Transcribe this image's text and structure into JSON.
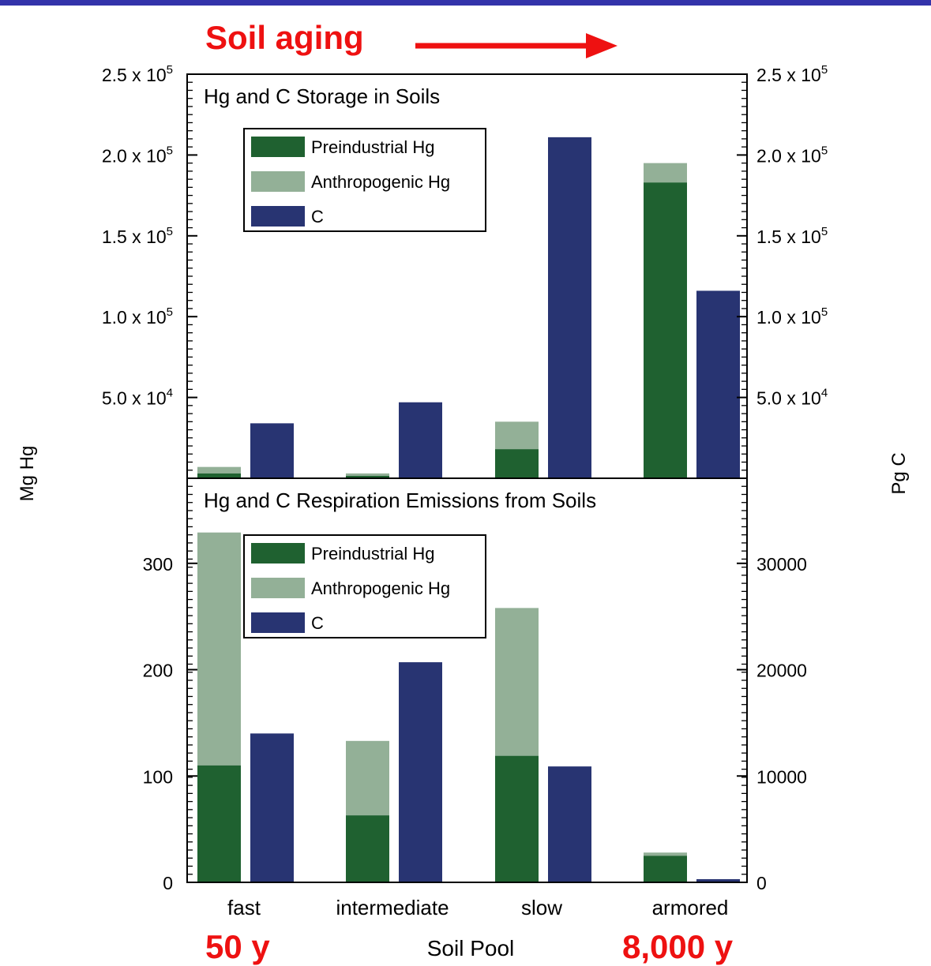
{
  "annotations": {
    "soil_aging": "Soil aging",
    "fast_age": "50 y",
    "armored_age": "8,000 y"
  },
  "axes": {
    "xlabel": "Soil Pool",
    "left_ylabel": "Mg Hg",
    "right_ylabel": "Pg C"
  },
  "colors": {
    "preindustrial": "#1f6130",
    "anthropogenic": "#93b097",
    "carbon": "#283472",
    "annotation": "#ee1111",
    "topbar": "#3333aa"
  },
  "chart_data": [
    {
      "type": "bar",
      "stacked_hg": true,
      "title": "Hg and C Storage in Soils",
      "categories": [
        "fast",
        "intermediate",
        "slow",
        "armored"
      ],
      "series": [
        {
          "name": "Preindustrial Hg",
          "axis": "left",
          "values": [
            3000,
            1500,
            18000,
            183000
          ]
        },
        {
          "name": "Anthropogenic Hg",
          "axis": "left",
          "values": [
            4000,
            1500,
            17000,
            12000
          ]
        },
        {
          "name": "C",
          "axis": "right",
          "values": [
            34000,
            47000,
            211000,
            116000
          ]
        }
      ],
      "left_ylim": [
        0,
        250000
      ],
      "right_ylim": [
        0,
        250000
      ],
      "left_ticks": [
        {
          "v": 50000,
          "label": "5.0 x 10",
          "exp": "4"
        },
        {
          "v": 100000,
          "label": "1.0 x 10",
          "exp": "5"
        },
        {
          "v": 150000,
          "label": "1.5 x 10",
          "exp": "5"
        },
        {
          "v": 200000,
          "label": "2.0 x 10",
          "exp": "5"
        },
        {
          "v": 250000,
          "label": "2.5 x 10",
          "exp": "5"
        }
      ],
      "right_ticks": [
        {
          "v": 50000,
          "label": "5.0 x 10",
          "exp": "4"
        },
        {
          "v": 100000,
          "label": "1.0 x 10",
          "exp": "5"
        },
        {
          "v": 150000,
          "label": "1.5 x 10",
          "exp": "5"
        },
        {
          "v": 200000,
          "label": "2.0 x 10",
          "exp": "5"
        },
        {
          "v": 250000,
          "label": "2.5 x 10",
          "exp": "5"
        }
      ],
      "legend": "top-left"
    },
    {
      "type": "bar",
      "stacked_hg": true,
      "title": "Hg and C Respiration Emissions from Soils",
      "categories": [
        "fast",
        "intermediate",
        "slow",
        "armored"
      ],
      "series": [
        {
          "name": "Preindustrial Hg",
          "axis": "left",
          "values": [
            110,
            63,
            119,
            25
          ]
        },
        {
          "name": "Anthropogenic Hg",
          "axis": "left",
          "values": [
            219,
            70,
            139,
            3
          ]
        },
        {
          "name": "C",
          "axis": "right",
          "values": [
            14000,
            20700,
            10900,
            300
          ]
        }
      ],
      "left_ylim": [
        0,
        380
      ],
      "right_ylim": [
        0,
        38000
      ],
      "left_ticks": [
        {
          "v": 0,
          "label": "0",
          "exp": ""
        },
        {
          "v": 100,
          "label": "100",
          "exp": ""
        },
        {
          "v": 200,
          "label": "200",
          "exp": ""
        },
        {
          "v": 300,
          "label": "300",
          "exp": ""
        }
      ],
      "right_ticks": [
        {
          "v": 0,
          "label": "0",
          "exp": ""
        },
        {
          "v": 10000,
          "label": "10000",
          "exp": ""
        },
        {
          "v": 20000,
          "label": "20000",
          "exp": ""
        },
        {
          "v": 30000,
          "label": "30000",
          "exp": ""
        }
      ],
      "legend": "top-left"
    }
  ]
}
